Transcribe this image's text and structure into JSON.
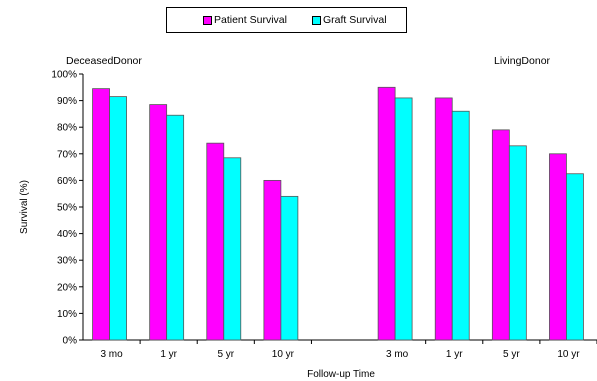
{
  "legend": {
    "items": [
      {
        "label": "Patient Survival",
        "color": "#ff00ff"
      },
      {
        "label": "Graft Survival",
        "color": "#00ffff"
      }
    ]
  },
  "panels": {
    "left_label": "DeceasedDonor",
    "right_label": "LivingDonor"
  },
  "chart_data": {
    "type": "bar",
    "title": "",
    "xlabel": "Follow-up Time",
    "ylabel": "Survival (%)",
    "ylim": [
      0,
      100
    ],
    "y_ticks": [
      "0%",
      "10%",
      "20%",
      "30%",
      "40%",
      "50%",
      "60%",
      "70%",
      "80%",
      "90%",
      "100%"
    ],
    "groups": [
      {
        "name": "DeceasedDonor",
        "categories": [
          "3 mo",
          "1 yr",
          "5 yr",
          "10 yr"
        ],
        "series": [
          {
            "name": "Patient Survival",
            "color": "#ff00ff",
            "values": [
              94.5,
              88.5,
              74,
              60
            ]
          },
          {
            "name": "Graft Survival",
            "color": "#00ffff",
            "values": [
              91.5,
              84.5,
              68.5,
              54
            ]
          }
        ]
      },
      {
        "name": "LivingDonor",
        "categories": [
          "3 mo",
          "1 yr",
          "5 yr",
          "10 yr"
        ],
        "series": [
          {
            "name": "Patient Survival",
            "color": "#ff00ff",
            "values": [
              95,
              91,
              79,
              70
            ]
          },
          {
            "name": "Graft Survival",
            "color": "#00ffff",
            "values": [
              91,
              86,
              73,
              62.5
            ]
          }
        ]
      }
    ],
    "grid": false,
    "legend_position": "top-center"
  }
}
